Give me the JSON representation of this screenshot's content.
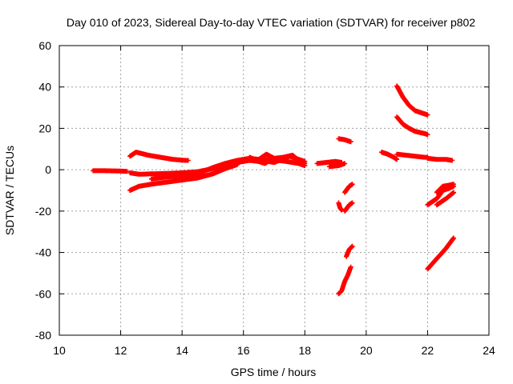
{
  "chart_data": {
    "type": "scatter",
    "title": "Day 010 of 2023, Sidereal Day-to-day VTEC variation (SDTVAR) for receiver p802",
    "xlabel": "GPS time / hours",
    "ylabel": "SDTVAR / TECUs",
    "xlim": [
      10,
      24
    ],
    "ylim": [
      -80,
      60
    ],
    "xticks": [
      10,
      12,
      14,
      16,
      18,
      20,
      22,
      24
    ],
    "yticks": [
      -80,
      -60,
      -40,
      -20,
      0,
      20,
      40,
      60
    ],
    "grid": true,
    "marker": "plus",
    "color": "#ff0000",
    "series": [
      {
        "points": [
          [
            11.1,
            -0.5
          ],
          [
            11.5,
            -0.5
          ],
          [
            11.9,
            -0.6
          ],
          [
            12.2,
            -0.8
          ]
        ]
      },
      {
        "points": [
          [
            12.3,
            -1.5
          ],
          [
            12.6,
            -2.2
          ],
          [
            13.0,
            -2.0
          ],
          [
            13.5,
            -1.8
          ],
          [
            14.0,
            -1.5
          ],
          [
            14.5,
            -1.0
          ],
          [
            15.0,
            0.5
          ],
          [
            15.4,
            2.5
          ],
          [
            15.8,
            3.5
          ],
          [
            16.2,
            4.5
          ],
          [
            16.5,
            4.0
          ],
          [
            16.8,
            5.0
          ],
          [
            17.1,
            4.5
          ],
          [
            17.4,
            4.0
          ],
          [
            17.8,
            3.0
          ],
          [
            18.0,
            2.0
          ]
        ]
      },
      {
        "points": [
          [
            12.3,
            -10.0
          ],
          [
            12.6,
            -8.0
          ],
          [
            13.0,
            -7.0
          ],
          [
            13.5,
            -6.0
          ],
          [
            14.0,
            -5.0
          ],
          [
            14.5,
            -4.0
          ],
          [
            15.0,
            -2.0
          ],
          [
            15.4,
            0.5
          ],
          [
            15.8,
            2.5
          ]
        ]
      },
      {
        "points": [
          [
            12.3,
            6.5
          ],
          [
            12.5,
            8.5
          ],
          [
            12.9,
            7.0
          ],
          [
            13.3,
            6.0
          ],
          [
            13.7,
            5.0
          ],
          [
            14.1,
            4.5
          ],
          [
            14.2,
            4.5
          ]
        ]
      },
      {
        "points": [
          [
            13.0,
            -4.5
          ],
          [
            13.5,
            -3.5
          ],
          [
            14.0,
            -3.0
          ],
          [
            14.5,
            -2.0
          ],
          [
            15.0,
            1.0
          ],
          [
            15.4,
            3.0
          ],
          [
            15.8,
            4.5
          ],
          [
            16.2,
            5.5
          ],
          [
            16.5,
            5.0
          ],
          [
            16.75,
            7.5
          ],
          [
            17.0,
            5.5
          ],
          [
            17.3,
            6.0
          ],
          [
            17.6,
            7.0
          ],
          [
            17.8,
            4.5
          ],
          [
            18.0,
            3.0
          ]
        ]
      },
      {
        "points": [
          [
            16.2,
            6.0
          ],
          [
            16.5,
            4.0
          ],
          [
            16.7,
            3.0
          ],
          [
            16.8,
            4.0
          ],
          [
            17.0,
            3.5
          ],
          [
            17.5,
            6.5
          ],
          [
            17.7,
            5.5
          ],
          [
            18.0,
            4.0
          ]
        ]
      },
      {
        "points": [
          [
            18.4,
            3.0
          ],
          [
            18.7,
            3.5
          ],
          [
            19.0,
            4.0
          ],
          [
            19.2,
            3.5
          ]
        ]
      },
      {
        "points": [
          [
            18.8,
            1.5
          ],
          [
            19.1,
            2.0
          ],
          [
            19.3,
            3.0
          ]
        ]
      },
      {
        "points": [
          [
            19.1,
            15.0
          ],
          [
            19.3,
            14.5
          ],
          [
            19.5,
            13.5
          ]
        ]
      },
      {
        "points": [
          [
            19.1,
            -16.0
          ],
          [
            19.15,
            -18.5
          ],
          [
            19.2,
            -19.5
          ]
        ]
      },
      {
        "points": [
          [
            19.3,
            -11.0
          ],
          [
            19.45,
            -8.0
          ],
          [
            19.55,
            -7.0
          ]
        ]
      },
      {
        "points": [
          [
            19.3,
            -20.0
          ],
          [
            19.45,
            -17.0
          ],
          [
            19.55,
            -16.0
          ]
        ]
      },
      {
        "points": [
          [
            19.35,
            -42.0
          ],
          [
            19.45,
            -38.5
          ],
          [
            19.55,
            -37.0
          ]
        ]
      },
      {
        "points": [
          [
            19.1,
            -60.0
          ],
          [
            19.2,
            -58.5
          ],
          [
            19.3,
            -54.0
          ],
          [
            19.4,
            -51.0
          ],
          [
            19.5,
            -47.0
          ]
        ]
      },
      {
        "points": [
          [
            20.5,
            8.5
          ],
          [
            20.7,
            7.5
          ],
          [
            20.9,
            6.0
          ],
          [
            21.0,
            5.0
          ]
        ]
      },
      {
        "points": [
          [
            21.0,
            7.5
          ],
          [
            21.3,
            7.0
          ],
          [
            21.6,
            6.5
          ],
          [
            21.9,
            6.0
          ],
          [
            22.0,
            6.0
          ]
        ]
      },
      {
        "points": [
          [
            21.0,
            40.5
          ],
          [
            21.2,
            35.0
          ],
          [
            21.4,
            31.0
          ],
          [
            21.6,
            28.5
          ],
          [
            21.9,
            27.0
          ],
          [
            22.0,
            26.5
          ]
        ]
      },
      {
        "points": [
          [
            21.0,
            25.5
          ],
          [
            21.2,
            22.0
          ],
          [
            21.4,
            20.0
          ],
          [
            21.6,
            18.5
          ],
          [
            21.9,
            17.5
          ],
          [
            22.0,
            17.0
          ]
        ]
      },
      {
        "points": [
          [
            22.0,
            5.5
          ],
          [
            22.3,
            5.0
          ],
          [
            22.6,
            5.0
          ],
          [
            22.8,
            4.5
          ]
        ]
      },
      {
        "points": [
          [
            22.0,
            -17.0
          ],
          [
            22.3,
            -14.0
          ],
          [
            22.5,
            -10.0
          ],
          [
            22.7,
            -9.0
          ],
          [
            22.85,
            -8.0
          ]
        ]
      },
      {
        "points": [
          [
            22.3,
            -11.0
          ],
          [
            22.5,
            -8.0
          ],
          [
            22.7,
            -7.5
          ],
          [
            22.85,
            -7.0
          ]
        ]
      },
      {
        "points": [
          [
            22.3,
            -17.0
          ],
          [
            22.6,
            -14.0
          ],
          [
            22.85,
            -11.0
          ]
        ]
      },
      {
        "points": [
          [
            22.0,
            -48.0
          ],
          [
            22.3,
            -43.0
          ],
          [
            22.6,
            -38.0
          ],
          [
            22.85,
            -33.0
          ]
        ]
      }
    ]
  }
}
